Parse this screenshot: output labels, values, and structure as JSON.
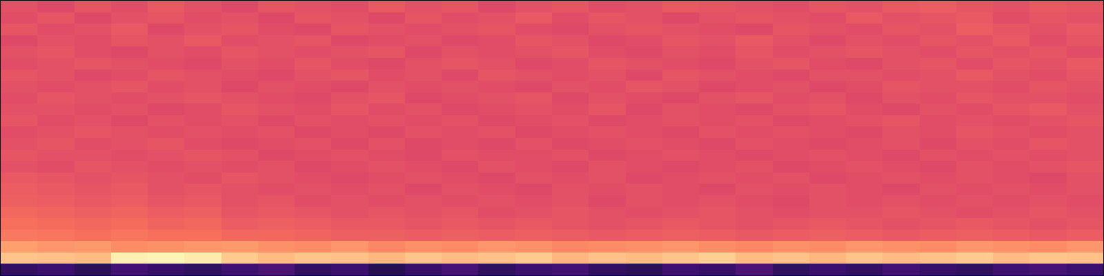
{
  "chart_data": {
    "type": "heatmap",
    "color": "magma",
    "tick_labels": false,
    "zlim": [
      0,
      1
    ],
    "cells": [
      [
        0.62,
        0.6,
        0.63,
        0.61,
        0.64,
        0.62,
        0.6,
        0.63,
        0.62,
        0.61,
        0.64,
        0.62,
        0.63,
        0.6,
        0.62,
        0.63,
        0.61,
        0.62,
        0.64,
        0.63,
        0.62,
        0.61,
        0.63,
        0.62,
        0.64,
        0.65,
        0.63,
        0.62,
        0.64,
        0.63
      ],
      [
        0.61,
        0.63,
        0.6,
        0.62,
        0.63,
        0.61,
        0.62,
        0.6,
        0.63,
        0.62,
        0.6,
        0.63,
        0.61,
        0.62,
        0.64,
        0.61,
        0.63,
        0.62,
        0.6,
        0.62,
        0.63,
        0.62,
        0.61,
        0.64,
        0.62,
        0.63,
        0.64,
        0.61,
        0.63,
        0.62
      ],
      [
        0.63,
        0.61,
        0.62,
        0.64,
        0.6,
        0.62,
        0.63,
        0.61,
        0.6,
        0.63,
        0.62,
        0.61,
        0.62,
        0.63,
        0.61,
        0.6,
        0.62,
        0.63,
        0.62,
        0.61,
        0.6,
        0.63,
        0.62,
        0.61,
        0.63,
        0.62,
        0.65,
        0.63,
        0.62,
        0.64
      ],
      [
        0.6,
        0.62,
        0.61,
        0.63,
        0.62,
        0.64,
        0.61,
        0.62,
        0.63,
        0.6,
        0.61,
        0.62,
        0.6,
        0.61,
        0.63,
        0.62,
        0.6,
        0.61,
        0.63,
        0.62,
        0.64,
        0.62,
        0.6,
        0.62,
        0.61,
        0.63,
        0.62,
        0.64,
        0.61,
        0.63
      ],
      [
        0.62,
        0.63,
        0.61,
        0.6,
        0.62,
        0.61,
        0.63,
        0.62,
        0.61,
        0.62,
        0.63,
        0.6,
        0.62,
        0.61,
        0.62,
        0.63,
        0.61,
        0.6,
        0.62,
        0.61,
        0.63,
        0.61,
        0.62,
        0.63,
        0.62,
        0.61,
        0.63,
        0.62,
        0.63,
        0.61
      ],
      [
        0.61,
        0.62,
        0.63,
        0.62,
        0.61,
        0.6,
        0.62,
        0.61,
        0.63,
        0.61,
        0.6,
        0.62,
        0.63,
        0.62,
        0.6,
        0.61,
        0.63,
        0.62,
        0.61,
        0.6,
        0.62,
        0.63,
        0.61,
        0.6,
        0.62,
        0.63,
        0.61,
        0.63,
        0.62,
        0.64
      ],
      [
        0.63,
        0.62,
        0.6,
        0.61,
        0.63,
        0.62,
        0.61,
        0.6,
        0.62,
        0.63,
        0.61,
        0.62,
        0.6,
        0.63,
        0.62,
        0.61,
        0.62,
        0.6,
        0.63,
        0.62,
        0.61,
        0.6,
        0.62,
        0.62,
        0.61,
        0.62,
        0.64,
        0.62,
        0.61,
        0.63
      ],
      [
        0.62,
        0.61,
        0.62,
        0.63,
        0.61,
        0.62,
        0.6,
        0.62,
        0.61,
        0.6,
        0.62,
        0.61,
        0.62,
        0.61,
        0.6,
        0.62,
        0.61,
        0.63,
        0.62,
        0.6,
        0.61,
        0.62,
        0.6,
        0.61,
        0.63,
        0.62,
        0.62,
        0.61,
        0.63,
        0.62
      ],
      [
        0.61,
        0.63,
        0.62,
        0.61,
        0.62,
        0.63,
        0.62,
        0.61,
        0.6,
        0.62,
        0.63,
        0.6,
        0.61,
        0.62,
        0.63,
        0.6,
        0.62,
        0.61,
        0.6,
        0.62,
        0.63,
        0.61,
        0.62,
        0.6,
        0.62,
        0.61,
        0.63,
        0.62,
        0.62,
        0.61
      ],
      [
        0.62,
        0.62,
        0.61,
        0.62,
        0.6,
        0.61,
        0.63,
        0.62,
        0.61,
        0.63,
        0.61,
        0.62,
        0.6,
        0.61,
        0.62,
        0.61,
        0.63,
        0.6,
        0.62,
        0.61,
        0.6,
        0.62,
        0.63,
        0.61,
        0.6,
        0.62,
        0.61,
        0.63,
        0.64,
        0.62
      ],
      [
        0.63,
        0.61,
        0.62,
        0.6,
        0.62,
        0.61,
        0.62,
        0.6,
        0.62,
        0.61,
        0.62,
        0.61,
        0.62,
        0.6,
        0.61,
        0.62,
        0.6,
        0.61,
        0.62,
        0.61,
        0.62,
        0.6,
        0.61,
        0.62,
        0.63,
        0.61,
        0.62,
        0.61,
        0.62,
        0.63
      ],
      [
        0.61,
        0.62,
        0.63,
        0.62,
        0.61,
        0.62,
        0.61,
        0.62,
        0.6,
        0.61,
        0.6,
        0.62,
        0.61,
        0.62,
        0.6,
        0.61,
        0.62,
        0.61,
        0.6,
        0.62,
        0.61,
        0.62,
        0.61,
        0.6,
        0.62,
        0.61,
        0.63,
        0.62,
        0.61,
        0.62
      ],
      [
        0.62,
        0.63,
        0.61,
        0.62,
        0.63,
        0.61,
        0.6,
        0.61,
        0.62,
        0.6,
        0.62,
        0.6,
        0.61,
        0.6,
        0.62,
        0.6,
        0.61,
        0.62,
        0.61,
        0.6,
        0.62,
        0.61,
        0.6,
        0.61,
        0.62,
        0.6,
        0.62,
        0.61,
        0.63,
        0.62
      ],
      [
        0.63,
        0.62,
        0.62,
        0.61,
        0.62,
        0.63,
        0.62,
        0.6,
        0.61,
        0.62,
        0.61,
        0.6,
        0.62,
        0.61,
        0.61,
        0.62,
        0.6,
        0.61,
        0.62,
        0.61,
        0.6,
        0.61,
        0.62,
        0.61,
        0.6,
        0.62,
        0.61,
        0.62,
        0.61,
        0.62
      ],
      [
        0.62,
        0.61,
        0.63,
        0.62,
        0.61,
        0.62,
        0.61,
        0.62,
        0.6,
        0.61,
        0.62,
        0.61,
        0.6,
        0.62,
        0.61,
        0.6,
        0.62,
        0.61,
        0.6,
        0.61,
        0.62,
        0.6,
        0.61,
        0.62,
        0.61,
        0.6,
        0.62,
        0.61,
        0.62,
        0.63
      ],
      [
        0.64,
        0.63,
        0.62,
        0.63,
        0.62,
        0.61,
        0.63,
        0.62,
        0.61,
        0.6,
        0.61,
        0.62,
        0.61,
        0.6,
        0.62,
        0.61,
        0.62,
        0.6,
        0.61,
        0.62,
        0.61,
        0.62,
        0.6,
        0.61,
        0.62,
        0.61,
        0.62,
        0.61,
        0.6,
        0.62
      ],
      [
        0.65,
        0.64,
        0.63,
        0.64,
        0.62,
        0.63,
        0.62,
        0.61,
        0.62,
        0.61,
        0.62,
        0.6,
        0.62,
        0.61,
        0.6,
        0.62,
        0.61,
        0.62,
        0.61,
        0.6,
        0.62,
        0.61,
        0.62,
        0.61,
        0.6,
        0.62,
        0.61,
        0.62,
        0.61,
        0.62
      ],
      [
        0.66,
        0.65,
        0.64,
        0.65,
        0.63,
        0.64,
        0.62,
        0.63,
        0.61,
        0.62,
        0.61,
        0.62,
        0.61,
        0.62,
        0.61,
        0.62,
        0.6,
        0.62,
        0.61,
        0.62,
        0.61,
        0.6,
        0.62,
        0.61,
        0.62,
        0.61,
        0.62,
        0.61,
        0.62,
        0.61
      ],
      [
        0.68,
        0.67,
        0.66,
        0.67,
        0.65,
        0.66,
        0.63,
        0.64,
        0.63,
        0.62,
        0.63,
        0.62,
        0.63,
        0.61,
        0.62,
        0.63,
        0.62,
        0.61,
        0.62,
        0.63,
        0.62,
        0.61,
        0.62,
        0.62,
        0.63,
        0.62,
        0.61,
        0.62,
        0.63,
        0.62
      ],
      [
        0.7,
        0.69,
        0.68,
        0.69,
        0.67,
        0.68,
        0.65,
        0.66,
        0.65,
        0.64,
        0.64,
        0.63,
        0.64,
        0.63,
        0.64,
        0.63,
        0.62,
        0.63,
        0.64,
        0.63,
        0.62,
        0.63,
        0.64,
        0.63,
        0.62,
        0.63,
        0.64,
        0.63,
        0.62,
        0.63
      ],
      [
        0.72,
        0.71,
        0.7,
        0.71,
        0.7,
        0.7,
        0.68,
        0.68,
        0.67,
        0.66,
        0.66,
        0.65,
        0.66,
        0.65,
        0.66,
        0.65,
        0.64,
        0.65,
        0.66,
        0.65,
        0.64,
        0.65,
        0.66,
        0.65,
        0.64,
        0.65,
        0.66,
        0.65,
        0.64,
        0.65
      ],
      [
        0.8,
        0.78,
        0.79,
        0.76,
        0.77,
        0.78,
        0.79,
        0.77,
        0.76,
        0.78,
        0.75,
        0.77,
        0.76,
        0.78,
        0.77,
        0.75,
        0.76,
        0.77,
        0.78,
        0.76,
        0.75,
        0.77,
        0.76,
        0.78,
        0.77,
        0.76,
        0.78,
        0.77,
        0.76,
        0.78
      ],
      [
        0.88,
        0.87,
        0.86,
        0.97,
        0.98,
        0.96,
        0.89,
        0.86,
        0.88,
        0.87,
        0.85,
        0.88,
        0.86,
        0.87,
        0.89,
        0.85,
        0.87,
        0.86,
        0.88,
        0.9,
        0.86,
        0.87,
        0.85,
        0.88,
        0.86,
        0.87,
        0.89,
        0.86,
        0.88,
        0.87
      ],
      [
        0.18,
        0.2,
        0.16,
        0.22,
        0.19,
        0.17,
        0.21,
        0.24,
        0.18,
        0.2,
        0.15,
        0.19,
        0.23,
        0.17,
        0.2,
        0.22,
        0.18,
        0.16,
        0.21,
        0.19,
        0.24,
        0.17,
        0.2,
        0.18,
        0.22,
        0.19,
        0.17,
        0.21,
        0.23,
        0.2
      ]
    ]
  }
}
